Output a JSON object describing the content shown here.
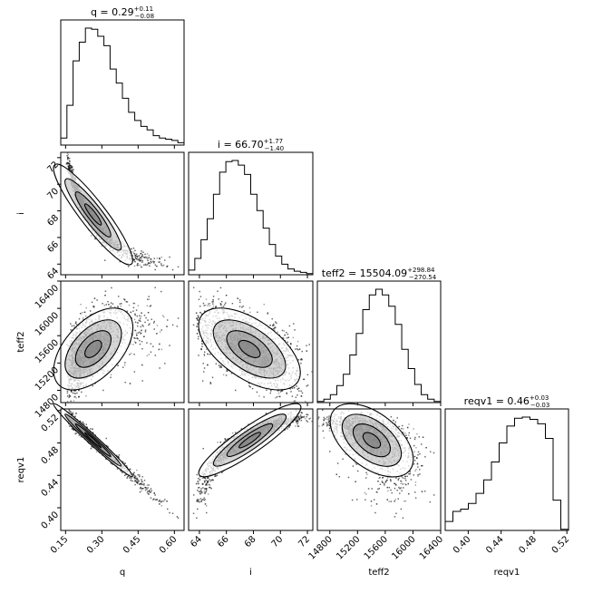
{
  "chart_data": {
    "type": "corner",
    "parameters": [
      {
        "key": "q",
        "axis_label": "q",
        "title": {
          "main": "q = 0.29",
          "plus": "+0.11",
          "minus": "−0.08"
        },
        "range": [
          0.13,
          0.64
        ],
        "ticks": [
          0.15,
          0.3,
          0.45,
          0.6
        ],
        "tick_labels": [
          "0.15",
          "0.30",
          "0.45",
          "0.60"
        ],
        "histogram": [
          0.06,
          0.34,
          0.72,
          0.88,
          1.0,
          0.99,
          0.93,
          0.85,
          0.65,
          0.53,
          0.4,
          0.28,
          0.21,
          0.16,
          0.13,
          0.08,
          0.06,
          0.05,
          0.04,
          0.02
        ]
      },
      {
        "key": "i",
        "axis_label": "i",
        "title": {
          "main": "i = 66.70",
          "plus": "+1.77",
          "minus": "−1.40"
        },
        "range": [
          63.2,
          72.4
        ],
        "ticks": [
          64,
          66,
          68,
          70,
          72
        ],
        "tick_labels": [
          "64",
          "66",
          "68",
          "70",
          "72"
        ],
        "histogram": [
          0.04,
          0.14,
          0.3,
          0.48,
          0.69,
          0.88,
          0.97,
          0.98,
          0.94,
          0.86,
          0.69,
          0.55,
          0.4,
          0.26,
          0.16,
          0.09,
          0.05,
          0.03,
          0.02,
          0.01
        ]
      },
      {
        "key": "teff2",
        "axis_label": "teff2",
        "title": {
          "main": "teff2 = 15504.09",
          "plus": "+298.84",
          "minus": "−270.54"
        },
        "range": [
          14620,
          16400
        ],
        "ticks": [
          14800,
          15200,
          15600,
          16000,
          16400
        ],
        "tick_labels": [
          "14800",
          "15200",
          "15600",
          "16000",
          "16400"
        ],
        "histogram": [
          0.01,
          0.03,
          0.07,
          0.15,
          0.25,
          0.42,
          0.61,
          0.82,
          0.95,
          1.0,
          0.95,
          0.85,
          0.69,
          0.47,
          0.3,
          0.16,
          0.07,
          0.03,
          0.01
        ]
      },
      {
        "key": "reqv1",
        "axis_label": "reqv1",
        "title": {
          "main": "reqv1 = 0.46",
          "plus": "+0.03",
          "minus": "−0.03"
        },
        "range": [
          0.372,
          0.522
        ],
        "ticks": [
          0.4,
          0.44,
          0.48,
          0.52
        ],
        "tick_labels": [
          "0.40",
          "0.44",
          "0.48",
          "0.52"
        ],
        "histogram": [
          0.08,
          0.17,
          0.19,
          0.24,
          0.33,
          0.45,
          0.61,
          0.78,
          0.93,
          1.0,
          1.01,
          0.99,
          0.95,
          0.82,
          0.27,
          0.01
        ]
      }
    ],
    "grid": false,
    "legend": "none"
  }
}
